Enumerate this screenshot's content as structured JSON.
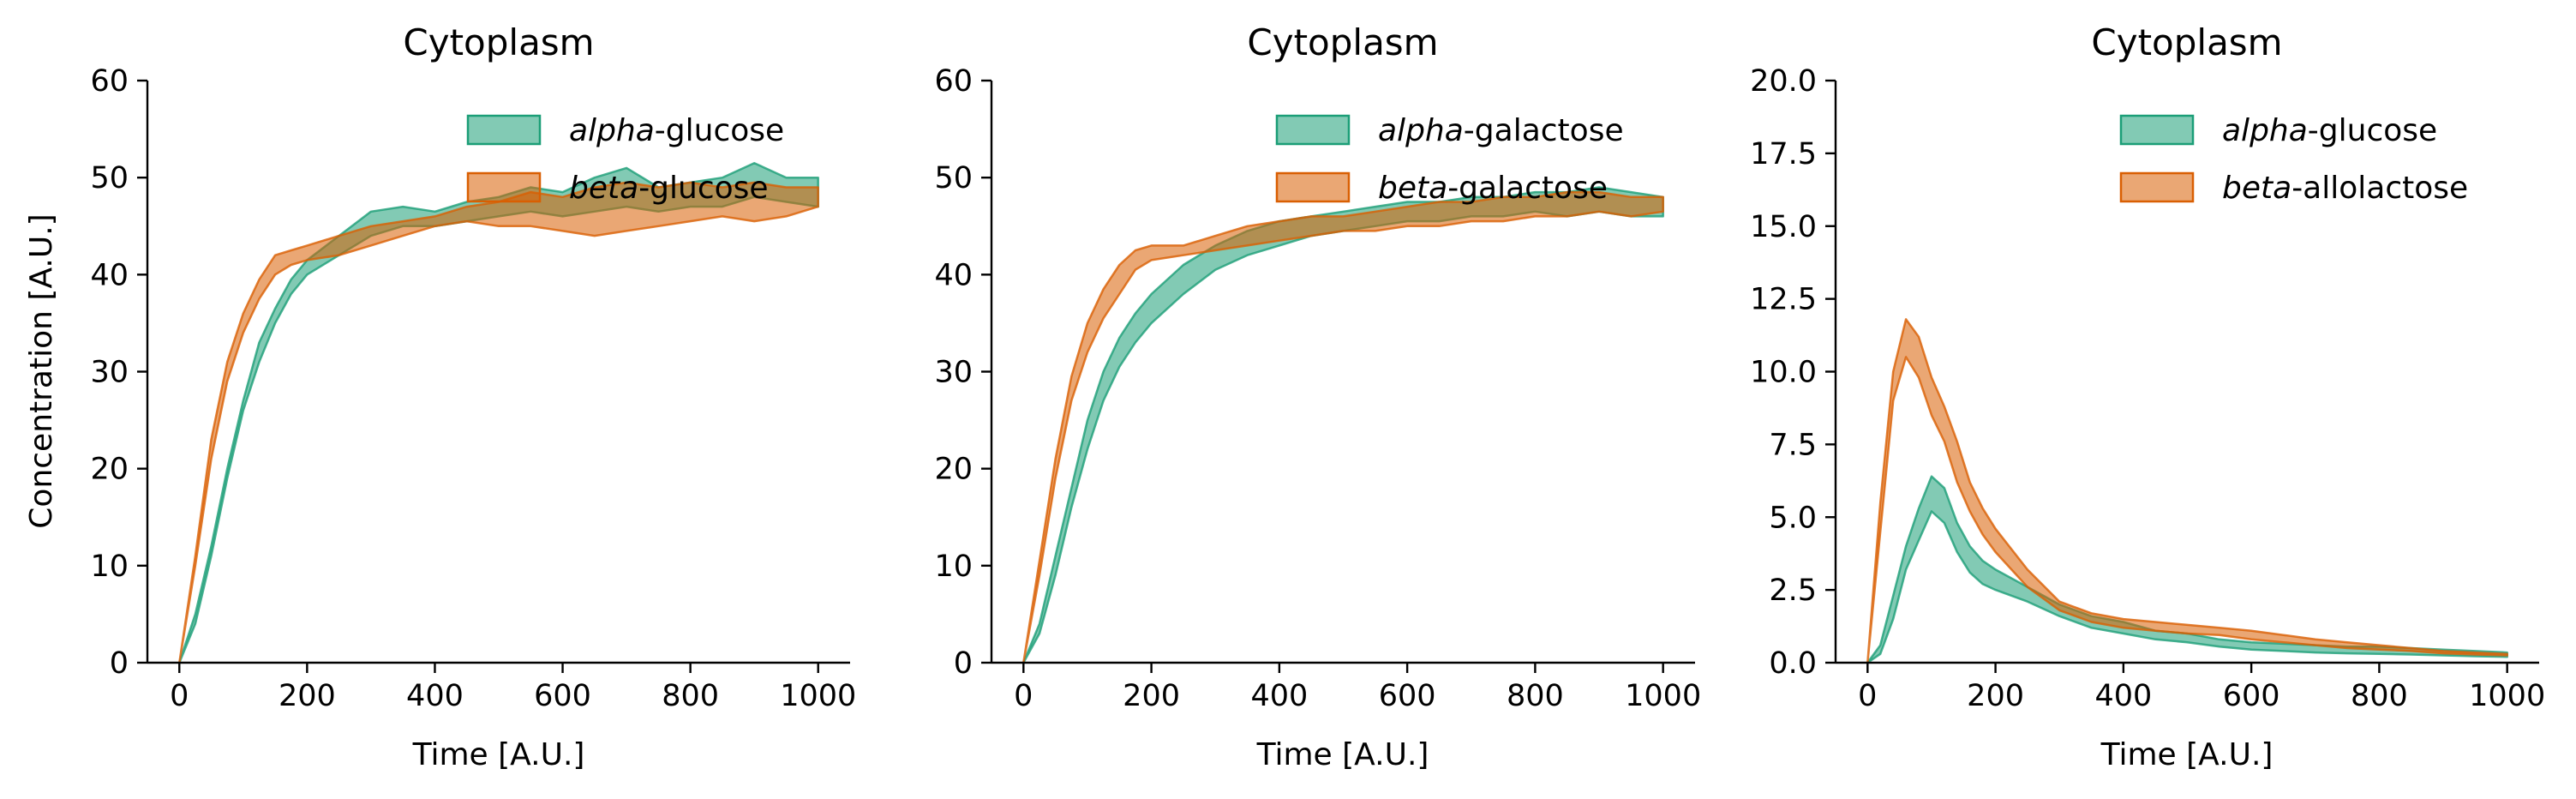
{
  "colors": {
    "teal": "#1b9e77",
    "orange": "#d95f02",
    "band_opacity": 0.55
  },
  "chart_data": [
    {
      "type": "area",
      "title": "Cytoplasm",
      "xlabel": "Time [A.U.]",
      "ylabel": "Concentration [A.U.]",
      "xlim": [
        -50,
        1050
      ],
      "ylim": [
        0,
        60
      ],
      "xticks": [
        "0",
        "200",
        "400",
        "600",
        "800",
        "1000"
      ],
      "yticks": [
        "0",
        "10",
        "20",
        "30",
        "40",
        "50",
        "60"
      ],
      "legend_position": "top-right",
      "series": [
        {
          "name": "alpha-glucose",
          "name_prefix": "alpha",
          "name_suffix": "-glucose",
          "color": "#1b9e77",
          "x": [
            0,
            25,
            50,
            75,
            100,
            125,
            150,
            175,
            200,
            250,
            300,
            350,
            400,
            450,
            500,
            550,
            600,
            650,
            700,
            750,
            800,
            850,
            900,
            950,
            1000
          ],
          "lower": [
            0,
            4,
            11,
            19,
            26,
            31,
            35,
            38,
            40,
            42,
            44,
            45,
            45,
            45.5,
            46,
            46.5,
            46,
            46.5,
            47,
            46.5,
            47,
            47,
            48,
            47.5,
            47
          ],
          "upper": [
            0,
            5,
            12,
            20,
            27,
            33,
            36.5,
            39.5,
            41.5,
            44,
            46.5,
            47,
            46.5,
            47.5,
            48,
            49,
            48.5,
            50,
            51,
            49,
            49.5,
            50,
            51.5,
            50,
            50
          ]
        },
        {
          "name": "beta-glucose",
          "name_prefix": "beta",
          "name_suffix": "-glucose",
          "color": "#d95f02",
          "x": [
            0,
            25,
            50,
            75,
            100,
            125,
            150,
            175,
            200,
            250,
            300,
            350,
            400,
            450,
            500,
            550,
            600,
            650,
            700,
            750,
            800,
            850,
            900,
            950,
            1000
          ],
          "lower": [
            0,
            10,
            21,
            29,
            34,
            37.5,
            40,
            41,
            41.5,
            42,
            43,
            44,
            45,
            45.5,
            45,
            45,
            44.5,
            44,
            44.5,
            45,
            45.5,
            46,
            45.5,
            46,
            47
          ],
          "upper": [
            0,
            11,
            23,
            31,
            36,
            39.5,
            42,
            42.5,
            43,
            44,
            45,
            45.5,
            46,
            47,
            47.5,
            48.5,
            48,
            49,
            49.5,
            49,
            49.5,
            49,
            49.5,
            49,
            49
          ]
        }
      ]
    },
    {
      "type": "area",
      "title": "Cytoplasm",
      "xlabel": "Time [A.U.]",
      "ylabel": "",
      "xlim": [
        -50,
        1050
      ],
      "ylim": [
        0,
        60
      ],
      "xticks": [
        "0",
        "200",
        "400",
        "600",
        "800",
        "1000"
      ],
      "yticks": [
        "0",
        "10",
        "20",
        "30",
        "40",
        "50",
        "60"
      ],
      "legend_position": "top-right",
      "series": [
        {
          "name": "alpha-galactose",
          "name_prefix": "alpha",
          "name_suffix": "-galactose",
          "color": "#1b9e77",
          "x": [
            0,
            25,
            50,
            75,
            100,
            125,
            150,
            175,
            200,
            250,
            300,
            350,
            400,
            450,
            500,
            550,
            600,
            650,
            700,
            750,
            800,
            850,
            900,
            950,
            1000
          ],
          "lower": [
            0,
            3,
            9,
            16,
            22,
            27,
            30.5,
            33,
            35,
            38,
            40.5,
            42,
            43,
            44,
            44.5,
            45,
            45.5,
            45.5,
            46,
            46,
            46.5,
            46,
            46.5,
            46,
            46
          ],
          "upper": [
            0,
            4,
            11,
            18,
            25,
            30,
            33.5,
            36,
            38,
            41,
            43,
            44.5,
            45.5,
            46,
            46.5,
            47,
            47.5,
            47.5,
            48,
            48,
            48.5,
            48.5,
            49,
            48.5,
            48
          ]
        },
        {
          "name": "beta-galactose",
          "name_prefix": "beta",
          "name_suffix": "-galactose",
          "color": "#d95f02",
          "x": [
            0,
            25,
            50,
            75,
            100,
            125,
            150,
            175,
            200,
            250,
            300,
            350,
            400,
            450,
            500,
            550,
            600,
            650,
            700,
            750,
            800,
            850,
            900,
            950,
            1000
          ],
          "lower": [
            0,
            9,
            19,
            27,
            32,
            35.5,
            38,
            40.5,
            41.5,
            42,
            42.5,
            43,
            43.5,
            44,
            44.5,
            44.5,
            45,
            45,
            45.5,
            45.5,
            46,
            46,
            46.5,
            46,
            46.5
          ],
          "upper": [
            0,
            10.5,
            21,
            29.5,
            35,
            38.5,
            41,
            42.5,
            43,
            43,
            44,
            45,
            45.5,
            46,
            46,
            46.5,
            47,
            47.5,
            47.5,
            48,
            48,
            48.5,
            48.5,
            48,
            48
          ]
        }
      ]
    },
    {
      "type": "area",
      "title": "Cytoplasm",
      "xlabel": "Time [A.U.]",
      "ylabel": "",
      "xlim": [
        -50,
        1050
      ],
      "ylim": [
        0,
        20
      ],
      "xticks": [
        "0",
        "200",
        "400",
        "600",
        "800",
        "1000"
      ],
      "yticks": [
        "0.0",
        "2.5",
        "5.0",
        "7.5",
        "10.0",
        "12.5",
        "15.0",
        "17.5",
        "20.0"
      ],
      "legend_position": "top-right",
      "series": [
        {
          "name": "alpha-glucose",
          "name_prefix": "alpha",
          "name_suffix": "-glucose",
          "color": "#1b9e77",
          "x": [
            0,
            20,
            40,
            60,
            80,
            100,
            120,
            140,
            160,
            180,
            200,
            250,
            300,
            350,
            400,
            450,
            500,
            550,
            600,
            650,
            700,
            750,
            800,
            850,
            900,
            950,
            1000
          ],
          "lower": [
            0,
            0.3,
            1.5,
            3.2,
            4.2,
            5.2,
            4.8,
            3.8,
            3.1,
            2.7,
            2.5,
            2.1,
            1.6,
            1.2,
            1.0,
            0.8,
            0.7,
            0.55,
            0.45,
            0.4,
            0.35,
            0.32,
            0.3,
            0.28,
            0.25,
            0.22,
            0.2
          ],
          "upper": [
            0,
            0.6,
            2.3,
            4.0,
            5.3,
            6.4,
            6.0,
            4.8,
            4.0,
            3.5,
            3.2,
            2.6,
            2.0,
            1.6,
            1.4,
            1.1,
            1.0,
            0.8,
            0.7,
            0.65,
            0.6,
            0.55,
            0.55,
            0.5,
            0.45,
            0.4,
            0.35
          ]
        },
        {
          "name": "beta-allolactose",
          "name_prefix": "beta",
          "name_suffix": "-allolactose",
          "color": "#d95f02",
          "x": [
            0,
            20,
            40,
            60,
            80,
            100,
            120,
            140,
            160,
            180,
            200,
            250,
            300,
            350,
            400,
            450,
            500,
            550,
            600,
            650,
            700,
            750,
            800,
            850,
            900,
            950,
            1000
          ],
          "lower": [
            0,
            4.5,
            9.0,
            10.5,
            9.8,
            8.5,
            7.6,
            6.2,
            5.2,
            4.4,
            3.8,
            2.6,
            1.8,
            1.4,
            1.2,
            1.1,
            1.0,
            0.95,
            0.8,
            0.7,
            0.6,
            0.5,
            0.45,
            0.4,
            0.32,
            0.28,
            0.25
          ],
          "upper": [
            0,
            5.5,
            10.0,
            11.8,
            11.2,
            9.8,
            8.8,
            7.6,
            6.2,
            5.3,
            4.6,
            3.2,
            2.1,
            1.7,
            1.5,
            1.4,
            1.3,
            1.2,
            1.1,
            0.95,
            0.8,
            0.7,
            0.6,
            0.5,
            0.4,
            0.35,
            0.3
          ]
        }
      ]
    }
  ]
}
